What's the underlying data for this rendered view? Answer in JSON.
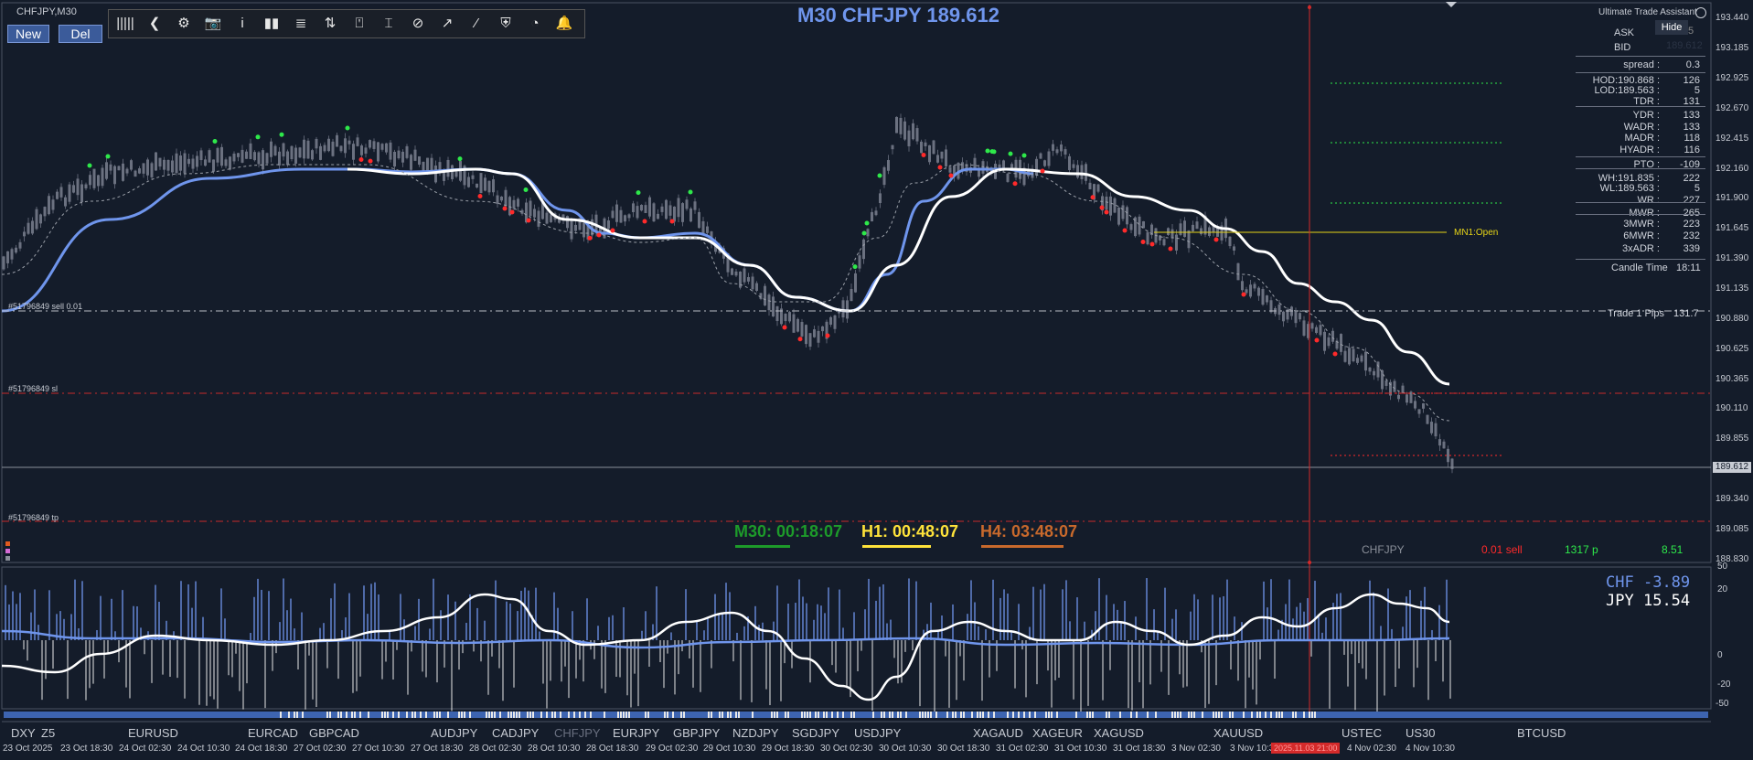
{
  "chart_label": "CHFJPY,M30",
  "buttons": {
    "new": "New",
    "del": "Del"
  },
  "toolbar": {
    "items": [
      "|||||",
      "❮",
      "⚙",
      "📷",
      "i",
      "▮▮",
      "≣",
      "⇅",
      "⍞",
      "⌶",
      "⊘",
      "↗",
      "⁄",
      "⛨",
      "◔",
      "🔔"
    ],
    "icon_names": [
      "grip-icon",
      "back-icon",
      "gear-icon",
      "camera-icon",
      "info-icon",
      "bars-icon",
      "list-icon",
      "candles-icon",
      "template-icon",
      "cursor-icon",
      "eraser-icon",
      "trend-icon",
      "line-icon",
      "shield-icon",
      "pie-icon",
      "bell-icon"
    ]
  },
  "title": "M30 CHFJPY 189.612",
  "assistant": {
    "title": "Ultimate Trade Assistant",
    "hide": "Hide",
    "ask_label": "ASK",
    "ask_value": "5",
    "bid_label": "BID",
    "bid_value": "189.612",
    "rows": [
      {
        "k": "spread :",
        "v": "0.3"
      },
      {
        "k": "HOD:190.868 :",
        "v": "126"
      },
      {
        "k": "LOD:189.563 :",
        "v": "5"
      },
      {
        "k": "TDR :",
        "v": "131"
      },
      {
        "k": "YDR :",
        "v": "133"
      },
      {
        "k": "WADR :",
        "v": "133"
      },
      {
        "k": "MADR :",
        "v": "118"
      },
      {
        "k": "HYADR :",
        "v": "116"
      },
      {
        "k": "PTO :",
        "v": "-109"
      },
      {
        "k": "WH:191.835 :",
        "v": "222"
      },
      {
        "k": "WL:189.563 :",
        "v": "5"
      },
      {
        "k": "WR :",
        "v": "227"
      },
      {
        "k": "MWR :",
        "v": "265"
      },
      {
        "k": "3MWR :",
        "v": "223"
      },
      {
        "k": "6MWR :",
        "v": "232"
      },
      {
        "k": "3xADR :",
        "v": "339"
      }
    ],
    "candle_time_label": "Candle Time",
    "candle_time_value": "18:11",
    "trade_pips_label": "Trade 1 Pips",
    "trade_pips_value": "131.7"
  },
  "levels": {
    "sell_label": "#51796849 sell 0.01",
    "sl_label": "#51796849 sl",
    "tp_label": "#51796849 tp",
    "mn1_label": "MN1:Open",
    "price_tag": "189.612"
  },
  "timers": {
    "m30": "M30: 00:18:07",
    "h1": "H1: 00:48:07",
    "h4": "H4: 03:48:07"
  },
  "trade_row": {
    "symbol": "CHFJPY",
    "side": "0.01 sell",
    "pips": "1317 p",
    "profit": "8.51"
  },
  "price_axis": [
    "193.440",
    "193.185",
    "192.925",
    "192.670",
    "192.415",
    "192.160",
    "191.900",
    "191.645",
    "191.390",
    "191.135",
    "190.880",
    "190.625",
    "190.365",
    "190.110",
    "189.855",
    "189.612",
    "189.340",
    "189.085",
    "188.830"
  ],
  "strength": {
    "chf_label": "CHF",
    "chf_value": "-3.89",
    "jpy_label": "JPY",
    "jpy_value": "15.54"
  },
  "osc_axis": [
    "50",
    "20",
    "0",
    "-20",
    "-50"
  ],
  "symbols": [
    "DXY",
    "Z5",
    "EURUSD",
    "EURCAD",
    "GBPCAD",
    "AUDJPY",
    "CADJPY",
    "CHFJPY",
    "EURJPY",
    "GBPJPY",
    "NZDJPY",
    "SGDJPY",
    "USDJPY",
    "XAGAUD",
    "XAGEUR",
    "XAGUSD",
    "XAUUSD",
    "USTEC",
    "US30",
    "BTCUSD"
  ],
  "time_axis": [
    "23 Oct 2025",
    "23 Oct 18:30",
    "24 Oct 02:30",
    "24 Oct 10:30",
    "24 Oct 18:30",
    "27 Oct 02:30",
    "27 Oct 10:30",
    "27 Oct 18:30",
    "28 Oct 02:30",
    "28 Oct 10:30",
    "28 Oct 18:30",
    "29 Oct 02:30",
    "29 Oct 10:30",
    "29 Oct 18:30",
    "30 Oct 02:30",
    "30 Oct 10:30",
    "30 Oct 18:30",
    "31 Oct 02:30",
    "31 Oct 10:30",
    "31 Oct 18:30",
    "3 Nov 02:30",
    "3 Nov 10:30",
    "4 Nov 02:30",
    "4 Nov 10:30"
  ],
  "time_cursor": "2025.11.03 21:00",
  "colors": {
    "bg": "#141c2a",
    "blue": "#6f95ec",
    "white": "#ffffff",
    "green": "#2ee84a",
    "red": "#ff2a2a",
    "yellow": "#e6d417",
    "orange": "#c8692c",
    "dkgreen": "#1d9b2a",
    "cursor": "#d42a2a"
  }
}
